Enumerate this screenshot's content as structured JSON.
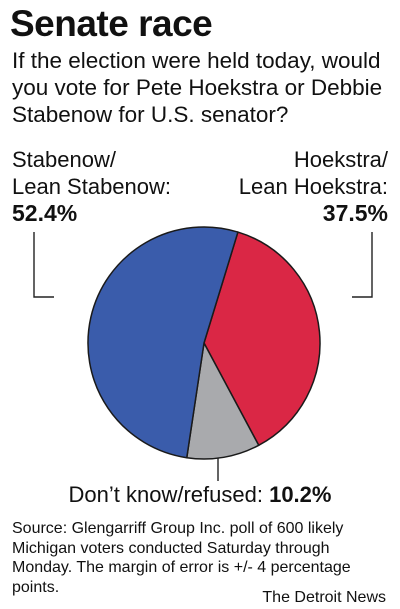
{
  "title": "Senate race",
  "question_lines": [
    "If the election were held today, would",
    "you vote for Pete Hoekstra or Debbie",
    "Stabenow for U.S. senator?"
  ],
  "labels": {
    "stabenow": {
      "line1": "Stabenow/",
      "line2": "Lean Stabenow:",
      "value": "52.4%"
    },
    "hoekstra": {
      "line1": "Hoekstra/",
      "line2": "Lean Hoekstra:",
      "value": "37.5%"
    },
    "dontknow": {
      "text": "Don’t know/refused:",
      "value": "10.2%"
    }
  },
  "source_lines": [
    "Source: Glengarriff Group Inc. poll of 600 likely",
    "Michigan voters conducted Saturday through",
    "Monday. The margin of error is +/- 4 percentage",
    "points."
  ],
  "credit": "The Detroit News",
  "chart_data": {
    "type": "pie",
    "categories": [
      "Stabenow/Lean Stabenow",
      "Hoekstra/Lean Hoekstra",
      "Don’t know/refused"
    ],
    "values": [
      52.4,
      37.5,
      10.2
    ],
    "colors": [
      "#3a5cab",
      "#da2745",
      "#a9aaad"
    ],
    "unit": "%"
  }
}
